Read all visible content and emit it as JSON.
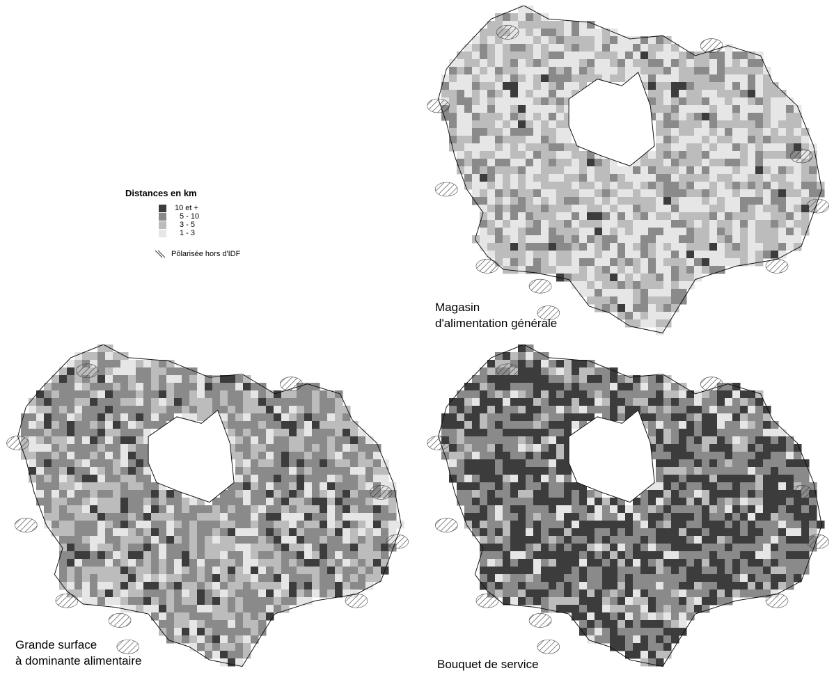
{
  "legend": {
    "title": "Distances en km",
    "classes": [
      {
        "label": "10 et +",
        "color": "#3c3c3c"
      },
      {
        "label": "5 - 10",
        "color": "#8a8a8a"
      },
      {
        "label": "3 -  5",
        "color": "#bcbcbc"
      },
      {
        "label": "1 -  3",
        "color": "#e6e6e6"
      }
    ],
    "hatch_label": "Pôlarisée hors d'IDF"
  },
  "maps": [
    {
      "id": "magasin",
      "caption_lines": [
        "Magasin",
        "d'alimentation générale"
      ],
      "class_weights": [
        0.02,
        0.2,
        0.4,
        0.38
      ]
    },
    {
      "id": "grande-surface",
      "caption_lines": [
        "Grande surface",
        "à dominante alimentaire"
      ],
      "class_weights": [
        0.1,
        0.45,
        0.3,
        0.15
      ]
    },
    {
      "id": "bouquet",
      "caption_lines": [
        "Bouquet de service"
      ],
      "class_weights": [
        0.45,
        0.35,
        0.12,
        0.08
      ]
    }
  ]
}
